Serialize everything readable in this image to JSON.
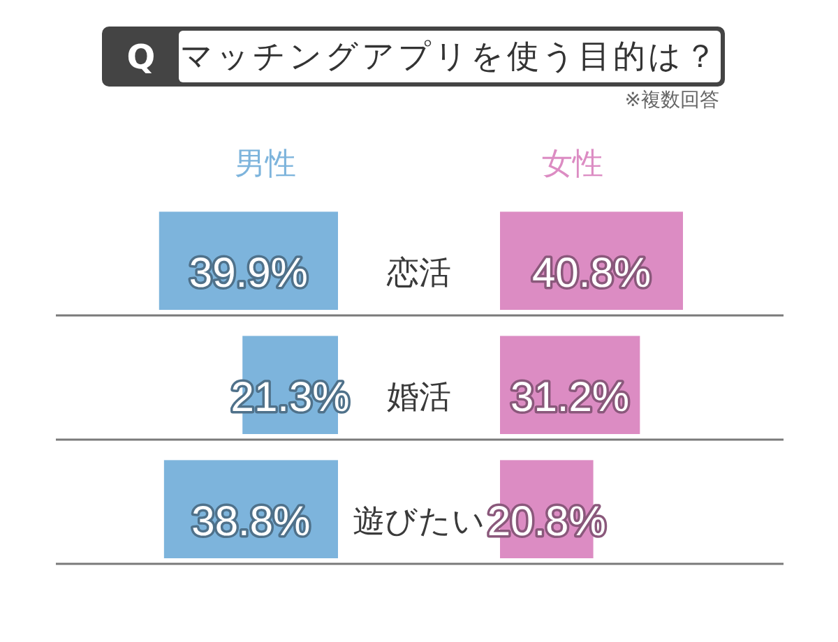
{
  "chart_data": [
    {
      "type": "bar",
      "orientation": "horizontal",
      "title": "マッチングアプリを使う目的は？",
      "annotations": [
        "Q",
        "※複数回答"
      ],
      "categories": [
        "恋活",
        "婚活",
        "遊びたい"
      ],
      "series": [
        {
          "name": "男性",
          "color": "#7db4dc",
          "values": [
            39.9,
            21.3,
            38.8
          ],
          "value_labels": [
            "39.9%",
            "21.3%",
            "38.8%"
          ]
        }
      ],
      "tick_labels": "y",
      "grid": "y"
    },
    {
      "type": "bar",
      "orientation": "horizontal",
      "categories": [
        null,
        null,
        null
      ],
      "series": [
        {
          "name": "女性",
          "color": "#dc8cc3",
          "values": [
            40.8,
            31.2,
            20.8
          ],
          "value_labels": [
            "40.8%",
            "31.2%",
            "20.8%"
          ]
        }
      ],
      "grid": "y"
    }
  ]
}
